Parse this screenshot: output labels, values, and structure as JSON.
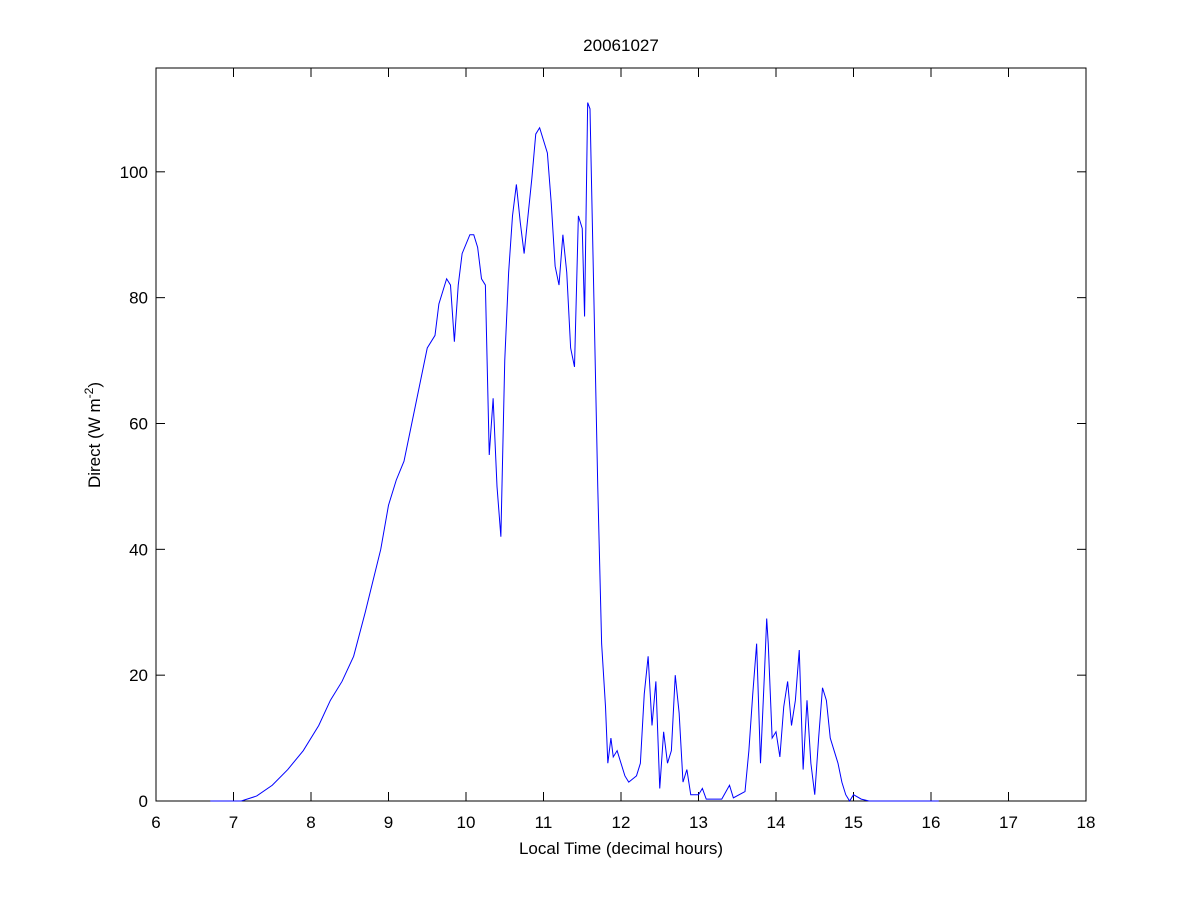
{
  "chart_data": {
    "type": "line",
    "title": "20061027",
    "xlabel": "Local Time (decimal hours)",
    "ylabel": {
      "text": "Direct (W m",
      "sup": "-2",
      "end": ")"
    },
    "x": [
      6.7,
      7.1,
      7.3,
      7.5,
      7.7,
      7.9,
      8.1,
      8.25,
      8.4,
      8.55,
      8.7,
      8.8,
      8.9,
      9.0,
      9.1,
      9.2,
      9.3,
      9.4,
      9.5,
      9.6,
      9.65,
      9.75,
      9.8,
      9.85,
      9.9,
      9.95,
      10.05,
      10.1,
      10.15,
      10.2,
      10.25,
      10.3,
      10.35,
      10.4,
      10.45,
      10.5,
      10.55,
      10.6,
      10.65,
      10.7,
      10.75,
      10.8,
      10.85,
      10.9,
      10.95,
      11.0,
      11.05,
      11.1,
      11.15,
      11.2,
      11.25,
      11.3,
      11.35,
      11.4,
      11.45,
      11.5,
      11.53,
      11.57,
      11.6,
      11.65,
      11.7,
      11.75,
      11.8,
      11.83,
      11.87,
      11.9,
      11.95,
      12.0,
      12.05,
      12.1,
      12.2,
      12.25,
      12.3,
      12.35,
      12.4,
      12.45,
      12.5,
      12.55,
      12.6,
      12.65,
      12.7,
      12.75,
      12.8,
      12.85,
      12.9,
      13.0,
      13.05,
      13.1,
      13.3,
      13.4,
      13.45,
      13.6,
      13.65,
      13.7,
      13.75,
      13.8,
      13.85,
      13.88,
      13.9,
      13.95,
      14.0,
      14.05,
      14.1,
      14.15,
      14.2,
      14.25,
      14.3,
      14.35,
      14.4,
      14.45,
      14.5,
      14.55,
      14.6,
      14.65,
      14.7,
      14.75,
      14.8,
      14.85,
      14.9,
      14.95,
      15.0,
      15.1,
      15.2,
      16.1
    ],
    "series": [
      {
        "name": "Direct",
        "color": "#0000ff",
        "values": [
          0,
          0,
          0.8,
          2.5,
          5,
          8,
          12,
          16,
          19,
          23,
          30,
          35,
          40,
          47,
          51,
          54,
          60,
          66,
          72,
          74,
          79,
          83,
          82,
          73,
          82,
          87,
          90,
          90,
          88,
          83,
          82,
          55,
          64,
          50,
          42,
          70,
          84,
          93,
          98,
          92,
          87,
          93,
          99,
          106,
          107,
          105,
          103,
          95,
          85,
          82,
          90,
          84,
          72,
          69,
          93,
          91,
          77,
          111,
          110,
          80,
          50,
          25,
          15,
          6,
          10,
          7,
          8,
          6,
          4,
          3,
          4,
          6,
          17,
          23,
          12,
          19,
          2,
          11,
          6,
          8,
          20,
          14,
          3,
          5,
          1,
          1,
          2,
          0.3,
          0.3,
          2.5,
          0.5,
          1.5,
          8,
          17,
          25,
          6,
          20,
          29,
          25,
          10,
          11,
          7,
          15,
          19,
          12,
          16,
          24,
          5,
          16,
          6,
          1,
          10,
          18,
          16,
          10,
          8,
          6,
          3,
          1,
          0,
          1,
          0.3,
          0,
          0
        ]
      }
    ],
    "xlim": [
      6,
      18
    ],
    "xticks": [
      6,
      7,
      8,
      9,
      10,
      11,
      12,
      13,
      14,
      15,
      16,
      17,
      18
    ],
    "ylim": [
      0,
      116.5
    ],
    "yticks": [
      0,
      20,
      40,
      60,
      80,
      100
    ]
  }
}
